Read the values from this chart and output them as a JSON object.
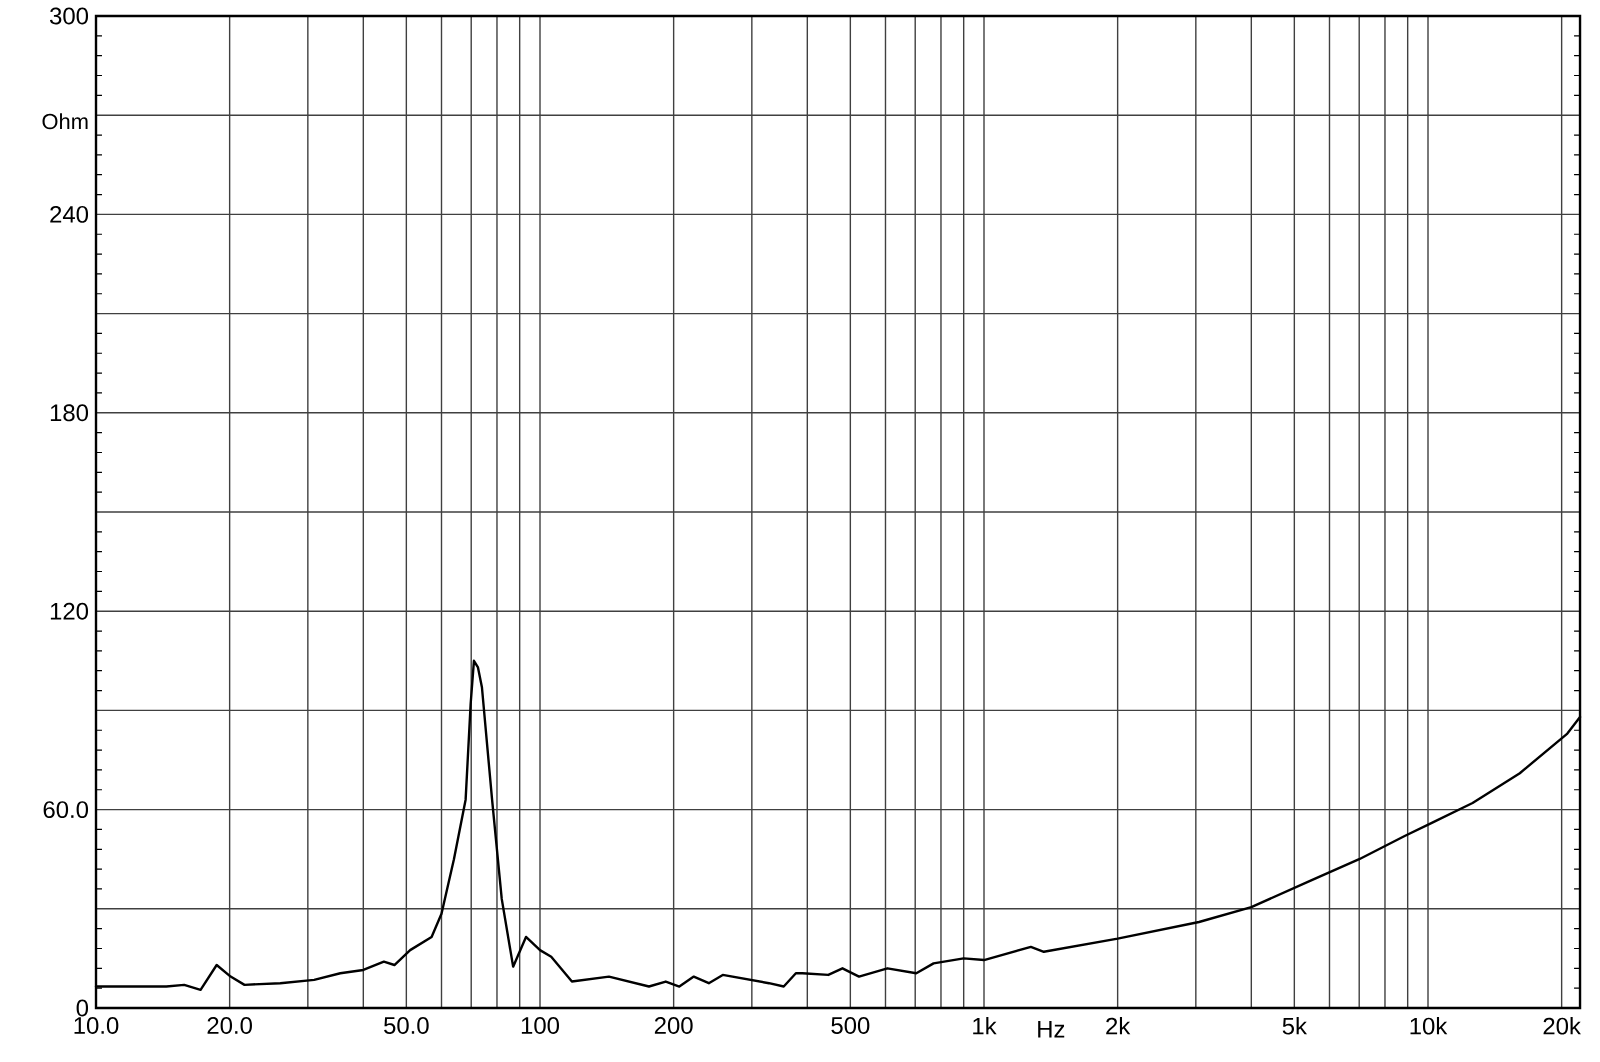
{
  "chart_data": {
    "type": "line",
    "xlabel": "Hz",
    "ylabel": "Ohm",
    "log": "x",
    "grid": true,
    "color": "#000000",
    "x": [
      10,
      14.4,
      15.8,
      17.2,
      18.7,
      20.1,
      21.6,
      26,
      31,
      35.5,
      40,
      44.5,
      47,
      51,
      57,
      60,
      64,
      68,
      69.8,
      71,
      72.5,
      74,
      78,
      82,
      87,
      93,
      100,
      106,
      118,
      143,
      176,
      192,
      206,
      222,
      240,
      258,
      328,
      354,
      377,
      390,
      446,
      480,
      523,
      606,
      704,
      770,
      900,
      1000,
      1275,
      1364,
      2000,
      3050,
      4000,
      5440,
      7000,
      8860,
      10200,
      12600,
      16100,
      20600,
      22000
    ],
    "values": [
      6.5,
      6.5,
      7,
      5.5,
      13,
      9.5,
      7,
      7.5,
      8.5,
      10.5,
      11.5,
      14,
      13,
      17.5,
      21.5,
      28.5,
      45,
      63,
      92,
      105,
      103,
      97,
      63,
      33,
      12.5,
      21.5,
      17.5,
      15.5,
      8,
      9.5,
      6.5,
      8,
      6.5,
      9.5,
      7.5,
      10,
      7.5,
      6.5,
      10.5,
      10.5,
      10,
      12,
      9.5,
      12,
      10.5,
      13.5,
      15,
      14.5,
      18.5,
      17,
      21,
      26,
      30.5,
      38.5,
      45,
      52,
      56,
      62,
      71,
      83,
      88
    ],
    "xlim": [
      10,
      22000
    ],
    "ylim": [
      0,
      300
    ],
    "xticks": [
      {
        "value": 10,
        "label": "10.0"
      },
      {
        "value": 20,
        "label": "20.0"
      },
      {
        "value": 30,
        "label": null
      },
      {
        "value": 40,
        "label": null
      },
      {
        "value": 50,
        "label": "50.0"
      },
      {
        "value": 60,
        "label": null
      },
      {
        "value": 70,
        "label": null
      },
      {
        "value": 80,
        "label": null
      },
      {
        "value": 90,
        "label": null
      },
      100,
      200,
      {
        "value": 300,
        "label": null
      },
      {
        "value": 400,
        "label": null
      },
      500,
      {
        "value": 600,
        "label": null
      },
      {
        "value": 700,
        "label": null
      },
      {
        "value": 800,
        "label": null
      },
      {
        "value": 900,
        "label": null
      },
      {
        "value": 1000,
        "label": "1k"
      },
      {
        "value": 2000,
        "label": "2k"
      },
      {
        "value": 3000,
        "label": null
      },
      {
        "value": 4000,
        "label": null
      },
      {
        "value": 5000,
        "label": "5k"
      },
      {
        "value": 6000,
        "label": null
      },
      {
        "value": 7000,
        "label": null
      },
      {
        "value": 8000,
        "label": null
      },
      {
        "value": 9000,
        "label": null
      },
      {
        "value": 10000,
        "label": "10k"
      },
      {
        "value": 20000,
        "label": "20k"
      }
    ],
    "yticks": [
      0,
      {
        "value": 30,
        "label": null
      },
      {
        "value": 60,
        "label": "60.0"
      },
      {
        "value": 90,
        "label": null
      },
      120,
      {
        "value": 150,
        "label": null
      },
      180,
      {
        "value": 210,
        "label": null
      },
      240,
      {
        "value": 270,
        "label": null
      },
      300
    ]
  }
}
